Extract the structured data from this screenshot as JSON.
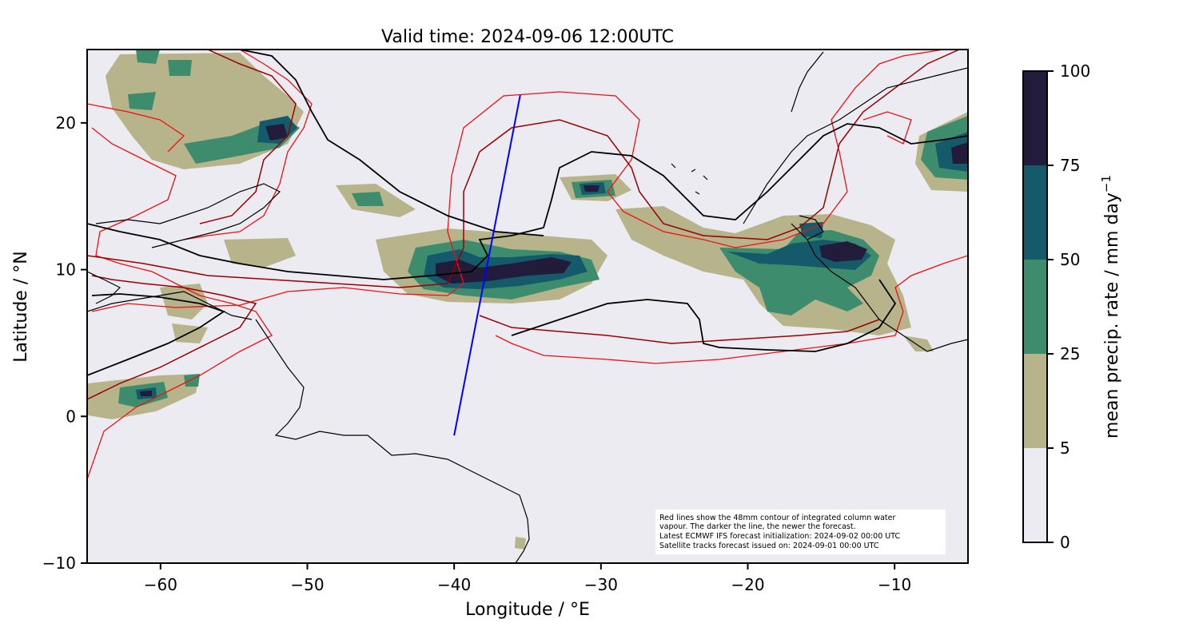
{
  "title": "Valid time: 2024-09-06 12:00UTC",
  "x_axis": {
    "label": "Longitude / °E",
    "range": [
      -65,
      -5
    ],
    "ticks": [
      -60,
      -50,
      -40,
      -30,
      -20,
      -10
    ],
    "tick_labels": [
      "−60",
      "−50",
      "−40",
      "−30",
      "−20",
      "−10"
    ]
  },
  "y_axis": {
    "label": "Latitude / °N",
    "range": [
      -10,
      25
    ],
    "ticks": [
      -10,
      0,
      10,
      20
    ],
    "tick_labels": [
      "−10",
      "0",
      "10",
      "20"
    ]
  },
  "colorbar": {
    "label": "mean precip. rate / mm day",
    "label_exponent": "−1",
    "levels": [
      0,
      5,
      25,
      50,
      75,
      100
    ],
    "level_labels": [
      "0",
      "5",
      "25",
      "50",
      "75",
      "100"
    ],
    "colors": [
      "#ecebf1",
      "#b7b48c",
      "#3e8c6e",
      "#145a6b",
      "#221c3a"
    ]
  },
  "colors": {
    "background": "#ecebf1",
    "coastline": "#000000",
    "forecast_contour_old": "#ee1111",
    "forecast_contour_mid": "#990000",
    "forecast_contour_new": "#000000",
    "satellite_track": "#0000ff"
  },
  "satellite_track": {
    "start": {
      "lon": -40.0,
      "lat": -1.3
    },
    "end": {
      "lon": -35.5,
      "lat": 21.9
    }
  },
  "annotation": {
    "lines": [
      "Red lines show the 48mm contour of integrated column water",
      "vapour. The darker the line, the newer the forecast.",
      "Latest ECMWF IFS forecast initialization: 2024-09-02 00:00 UTC",
      "Satellite tracks forecast issued on: 2024-09-01 00:00 UTC"
    ]
  }
}
